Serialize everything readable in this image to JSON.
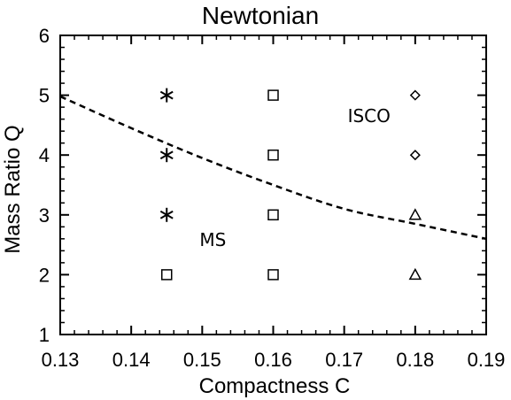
{
  "chart_data": {
    "type": "scatter",
    "title": "Newtonian",
    "xlabel": "Compactness C",
    "ylabel": "Mass Ratio Q",
    "xlim": [
      0.13,
      0.19
    ],
    "ylim": [
      1,
      6
    ],
    "xticks": [
      "0.13",
      "0.14",
      "0.15",
      "0.16",
      "0.17",
      "0.18",
      "0.19"
    ],
    "yticks": [
      "1",
      "2",
      "3",
      "4",
      "5",
      "6"
    ],
    "grid": false,
    "points": [
      {
        "x": 0.145,
        "y": 5,
        "marker": "asterisk"
      },
      {
        "x": 0.145,
        "y": 4,
        "marker": "asterisk"
      },
      {
        "x": 0.145,
        "y": 3,
        "marker": "asterisk"
      },
      {
        "x": 0.145,
        "y": 2,
        "marker": "square"
      },
      {
        "x": 0.16,
        "y": 5,
        "marker": "square"
      },
      {
        "x": 0.16,
        "y": 4,
        "marker": "square"
      },
      {
        "x": 0.16,
        "y": 3,
        "marker": "square"
      },
      {
        "x": 0.16,
        "y": 2,
        "marker": "square"
      },
      {
        "x": 0.18,
        "y": 5,
        "marker": "diamond"
      },
      {
        "x": 0.18,
        "y": 4,
        "marker": "diamond"
      },
      {
        "x": 0.18,
        "y": 3,
        "marker": "triangle"
      },
      {
        "x": 0.18,
        "y": 2,
        "marker": "triangle"
      }
    ],
    "boundary_line": {
      "style": "dashed",
      "x": [
        0.13,
        0.14,
        0.15,
        0.16,
        0.17,
        0.18,
        0.19
      ],
      "y": [
        4.98,
        4.45,
        3.95,
        3.5,
        3.1,
        2.85,
        2.6
      ]
    },
    "annotations": [
      {
        "text": "ISCO",
        "x": 0.1735,
        "y": 4.55
      },
      {
        "text": "MS",
        "x": 0.1515,
        "y": 2.48
      }
    ]
  }
}
